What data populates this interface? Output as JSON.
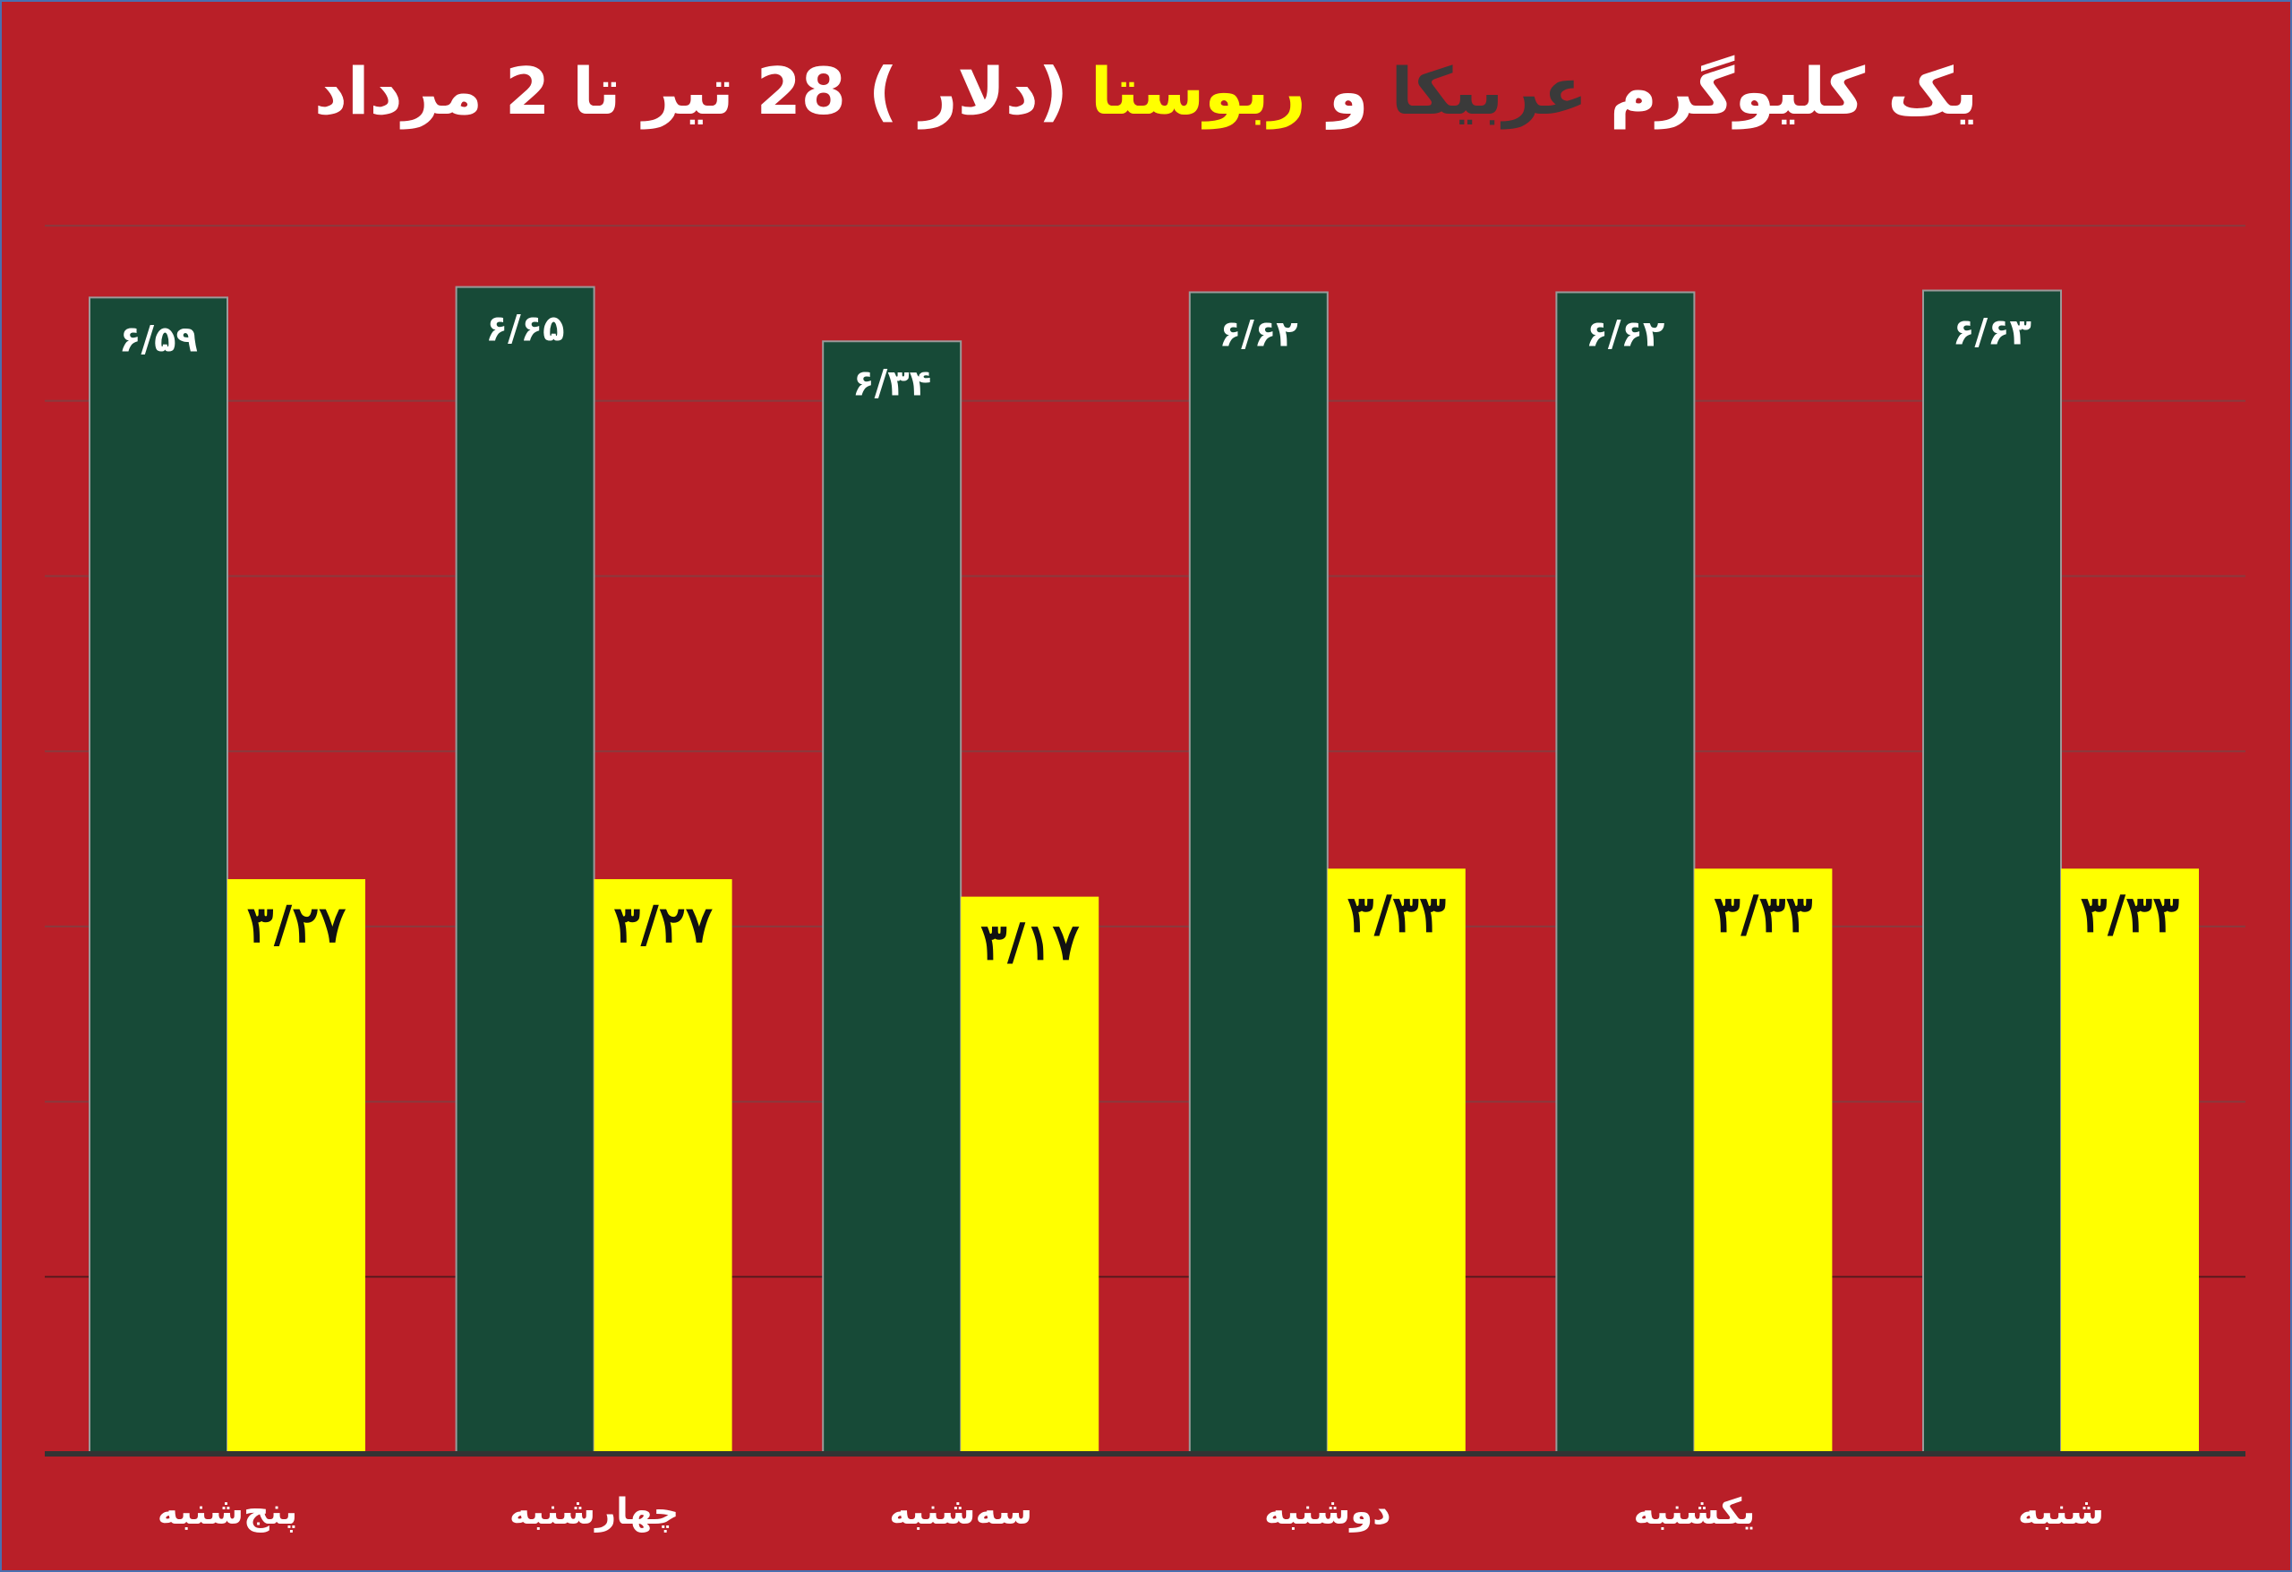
{
  "title": {
    "part1": "یک کلیوگرم ",
    "arabica": "عربیکا",
    "part2": " و ",
    "robusta": "ربوستا",
    "part3": " (دلار ) 28 تیر تا 2 مرداد"
  },
  "colors": {
    "background": "#b91f28",
    "arabica": "#174a37",
    "robusta": "#ffff00",
    "grid": "#8a3a3e",
    "axis": "#333333"
  },
  "chart_data": {
    "type": "bar",
    "categories": [
      "پنج‌شنبه",
      "چهارشنبه",
      "سه‌شنبه",
      "دوشنبه",
      "یکشنبه",
      "شنبه"
    ],
    "series": [
      {
        "values": [
          6.59,
          6.65,
          6.34,
          6.62,
          6.62,
          6.63
        ],
        "labels": [
          "۶/۵۹",
          "۶/۶۵",
          "۶/۳۴",
          "۶/۶۲",
          "۶/۶۲",
          "۶/۶۳"
        ]
      },
      {
        "values": [
          3.27,
          3.27,
          3.17,
          3.33,
          3.33,
          3.33
        ],
        "labels": [
          "۳/۲۷",
          "۳/۲۷",
          "۳/۱۷",
          "۳/۳۳",
          "۳/۳۳",
          "۳/۳۳"
        ]
      }
    ],
    "ylim": [
      0,
      7
    ],
    "ytick_step": 1,
    "grid": true,
    "legend": "none"
  }
}
